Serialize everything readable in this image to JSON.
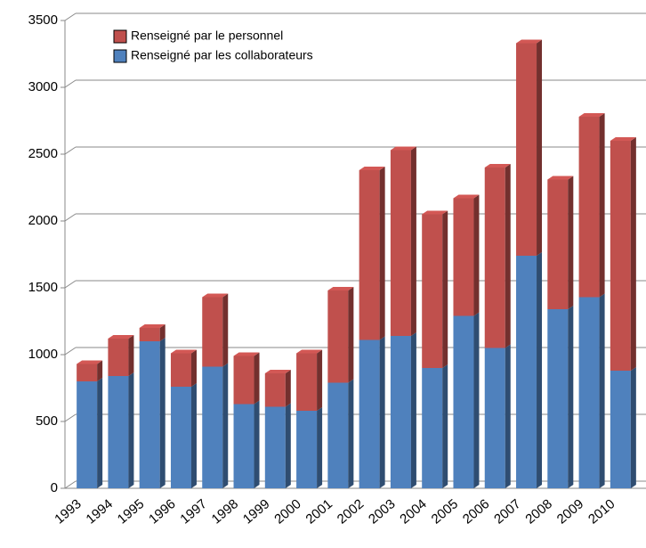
{
  "chart_data": {
    "type": "bar",
    "stacked": true,
    "categories": [
      "1993",
      "1994",
      "1995",
      "1996",
      "1997",
      "1998",
      "1999",
      "2000",
      "2001",
      "2002",
      "2003",
      "2004",
      "2005",
      "2006",
      "2007",
      "2008",
      "2009",
      "2010"
    ],
    "series": [
      {
        "name": "Renseigné par le personnel",
        "color": "#c0504d",
        "values": [
          130,
          280,
          100,
          250,
          520,
          360,
          250,
          430,
          690,
          1270,
          1390,
          1150,
          880,
          1350,
          1590,
          970,
          1350,
          1720
        ]
      },
      {
        "name": "Renseigné par les collaborateurs",
        "color": "#4f81bd",
        "values": [
          800,
          840,
          1100,
          760,
          910,
          630,
          610,
          580,
          790,
          1110,
          1140,
          900,
          1290,
          1050,
          1740,
          1340,
          1430,
          880
        ]
      }
    ],
    "ylim": [
      0,
      3500
    ],
    "yticks": [
      0,
      500,
      1000,
      1500,
      2000,
      2500,
      3000,
      3500
    ],
    "grid": true
  }
}
